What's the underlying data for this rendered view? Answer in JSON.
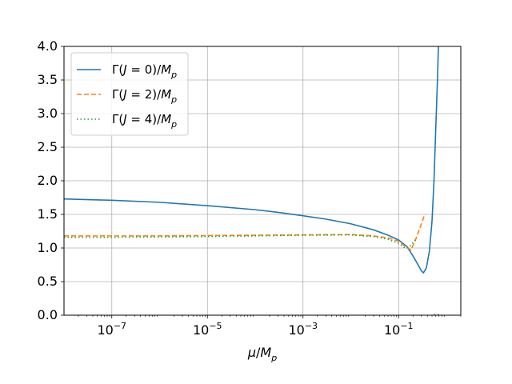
{
  "chart_data": {
    "type": "line",
    "title": "",
    "xlabel": "μ/M_p",
    "ylabel": "",
    "x_scale": "log",
    "xlim": [
      1e-08,
      2.0
    ],
    "ylim": [
      0.0,
      4.0
    ],
    "grid": true,
    "legend_position": "top-left",
    "x_ticks": [
      {
        "value": 1e-07,
        "base": "10",
        "exp": "−7"
      },
      {
        "value": 1e-05,
        "base": "10",
        "exp": "−5"
      },
      {
        "value": 0.001,
        "base": "10",
        "exp": "−3"
      },
      {
        "value": 0.1,
        "base": "10",
        "exp": "−1"
      }
    ],
    "y_ticks": [
      "0.0",
      "0.5",
      "1.0",
      "1.5",
      "2.0",
      "2.5",
      "3.0",
      "3.5",
      "4.0"
    ],
    "series": [
      {
        "name": "Γ(J = 0)/M_p",
        "label_parts": {
          "pre": "Γ(",
          "var": "J",
          "mid": " = 0)/",
          "main": "M",
          "sub": "p"
        },
        "color": "#1f77b4",
        "style": "solid",
        "points": [
          [
            1e-08,
            1.73
          ],
          [
            1e-07,
            1.71
          ],
          [
            1e-06,
            1.68
          ],
          [
            1e-05,
            1.63
          ],
          [
            0.0001,
            1.57
          ],
          [
            0.0003,
            1.53
          ],
          [
            0.001,
            1.48
          ],
          [
            0.003,
            1.43
          ],
          [
            0.01,
            1.36
          ],
          [
            0.03,
            1.27
          ],
          [
            0.06,
            1.19
          ],
          [
            0.1,
            1.12
          ],
          [
            0.15,
            1.02
          ],
          [
            0.2,
            0.88
          ],
          [
            0.25,
            0.76
          ],
          [
            0.3,
            0.66
          ],
          [
            0.33,
            0.63
          ],
          [
            0.38,
            0.7
          ],
          [
            0.44,
            0.95
          ],
          [
            0.5,
            1.4
          ],
          [
            0.55,
            2.0
          ],
          [
            0.6,
            2.8
          ],
          [
            0.65,
            3.5
          ],
          [
            0.68,
            4.0
          ]
        ]
      },
      {
        "name": "Γ(J = 2)/M_p",
        "label_parts": {
          "pre": "Γ(",
          "var": "J",
          "mid": " = 2)/",
          "main": "M",
          "sub": "p"
        },
        "color": "#ff7f0e",
        "style": "dashed",
        "points": [
          [
            1e-08,
            1.18
          ],
          [
            1e-07,
            1.18
          ],
          [
            1e-06,
            1.18
          ],
          [
            1e-05,
            1.185
          ],
          [
            0.0001,
            1.19
          ],
          [
            0.001,
            1.195
          ],
          [
            0.01,
            1.2
          ],
          [
            0.03,
            1.18
          ],
          [
            0.06,
            1.15
          ],
          [
            0.1,
            1.1
          ],
          [
            0.14,
            1.02
          ],
          [
            0.18,
            0.97
          ],
          [
            0.22,
            1.1
          ],
          [
            0.28,
            1.3
          ],
          [
            0.34,
            1.47
          ],
          [
            0.37,
            1.5
          ]
        ]
      },
      {
        "name": "Γ(J = 4)/M_p",
        "label_parts": {
          "pre": "Γ(",
          "var": "J",
          "mid": " = 4)/",
          "main": "M",
          "sub": "p"
        },
        "color": "#2ca02c",
        "style": "dotted",
        "points": [
          [
            1e-08,
            1.16
          ],
          [
            1e-07,
            1.16
          ],
          [
            1e-06,
            1.165
          ],
          [
            1e-05,
            1.17
          ],
          [
            0.0001,
            1.18
          ],
          [
            0.001,
            1.19
          ],
          [
            0.01,
            1.195
          ],
          [
            0.03,
            1.17
          ],
          [
            0.06,
            1.13
          ],
          [
            0.1,
            1.07
          ],
          [
            0.13,
            1.01
          ],
          [
            0.16,
            1.0
          ],
          [
            0.2,
            1.08
          ],
          [
            0.23,
            1.13
          ]
        ],
        "extra_segment": [
          [
            0.55,
            0.01
          ],
          [
            0.7,
            0.01
          ]
        ]
      }
    ]
  }
}
